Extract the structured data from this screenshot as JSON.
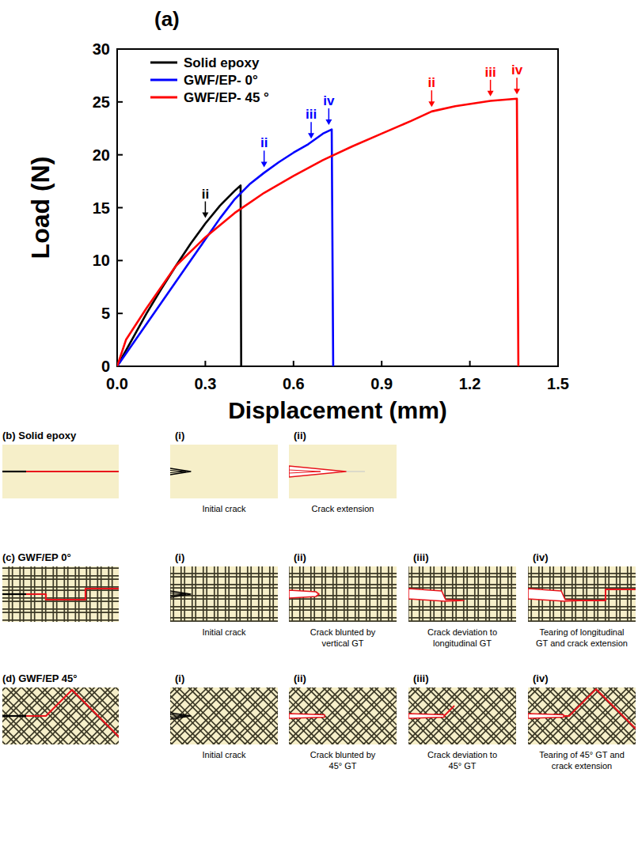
{
  "chart_data": {
    "type": "line",
    "title": "(a)",
    "x_label": "Displacement (mm)",
    "y_label": "Load (N)",
    "xlim": [
      0,
      1.5
    ],
    "xticks": [
      {
        "value": 0,
        "label": "0.0"
      },
      0.3,
      0.6,
      0.9,
      1.2,
      1.5
    ],
    "ylim": [
      0,
      30
    ],
    "yticks": [
      0,
      5,
      10,
      15,
      20,
      25,
      30
    ],
    "grid": false,
    "legend": "upper left",
    "series": [
      {
        "name": "Solid epoxy",
        "color": "#000000",
        "x": [
          0,
          0.05,
          0.1,
          0.15,
          0.2,
          0.25,
          0.3,
          0.35,
          0.4,
          0.42,
          0.422
        ],
        "values": [
          0,
          2.5,
          5,
          7.3,
          9.5,
          11.6,
          13.5,
          15.2,
          16.6,
          17.1,
          0
        ]
      },
      {
        "name": "GWF/EP- 0°",
        "color": "#0000ff",
        "x": [
          0,
          0.05,
          0.1,
          0.15,
          0.2,
          0.25,
          0.3,
          0.35,
          0.4,
          0.45,
          0.5,
          0.55,
          0.6,
          0.65,
          0.7,
          0.73,
          0.735
        ],
        "values": [
          0,
          2,
          4,
          6,
          8,
          10,
          12,
          14,
          15.8,
          17.2,
          18.3,
          19.3,
          20.2,
          21,
          22,
          22.4,
          0
        ]
      },
      {
        "name": "GWF/EP- 45 °",
        "color": "#ff0000",
        "x": [
          0,
          0.03,
          0.1,
          0.2,
          0.3,
          0.4,
          0.5,
          0.6,
          0.7,
          0.8,
          0.9,
          1.0,
          1.07,
          1.15,
          1.27,
          1.36,
          1.365
        ],
        "values": [
          0,
          2.5,
          5.5,
          9.5,
          12.2,
          14.5,
          16.4,
          18,
          19.5,
          20.8,
          22,
          23.2,
          24.1,
          24.6,
          25.1,
          25.3,
          0
        ]
      }
    ],
    "annotations": [
      {
        "text": "ii",
        "x": 0.3,
        "y": 13.8,
        "color": "#000000"
      },
      {
        "text": "ii",
        "x": 0.5,
        "y": 18.6,
        "color": "#0000ff"
      },
      {
        "text": "iii",
        "x": 0.66,
        "y": 21.3,
        "color": "#0000ff"
      },
      {
        "text": "iv",
        "x": 0.72,
        "y": 22.6,
        "color": "#0000ff"
      },
      {
        "text": "ii",
        "x": 1.07,
        "y": 24.3,
        "color": "#ff0000"
      },
      {
        "text": "iii",
        "x": 1.27,
        "y": 25.3,
        "color": "#ff0000"
      },
      {
        "text": "iv",
        "x": 1.36,
        "y": 25.5,
        "color": "#ff0000"
      }
    ]
  },
  "diagram": {
    "panels": [
      {
        "title": "(b) Solid epoxy",
        "steps": [
          {
            "label": "(i)",
            "caption": [
              "Initial crack"
            ]
          },
          {
            "label": "(ii)",
            "caption": [
              "Crack extension"
            ]
          }
        ]
      },
      {
        "title": "(c) GWF/EP 0°",
        "steps": [
          {
            "label": "(i)",
            "caption": [
              "Initial crack"
            ]
          },
          {
            "label": "(ii)",
            "caption": [
              "Crack blunted by",
              "vertical GT"
            ]
          },
          {
            "label": "(iii)",
            "caption": [
              "Crack deviation to",
              "longitudinal GT"
            ]
          },
          {
            "label": "(iv)",
            "caption": [
              "Tearing of longitudinal",
              "GT and crack extension"
            ]
          }
        ]
      },
      {
        "title": "(d) GWF/EP 45°",
        "steps": [
          {
            "label": "(i)",
            "caption": [
              "Initial crack"
            ]
          },
          {
            "label": "(ii)",
            "caption": [
              "Crack blunted by",
              "45° GT"
            ]
          },
          {
            "label": "(iii)",
            "caption": [
              "Crack deviation to",
              "45° GT"
            ]
          },
          {
            "label": "(iv)",
            "caption": [
              "Tearing of 45° GT and",
              "crack extension"
            ]
          }
        ]
      }
    ]
  }
}
